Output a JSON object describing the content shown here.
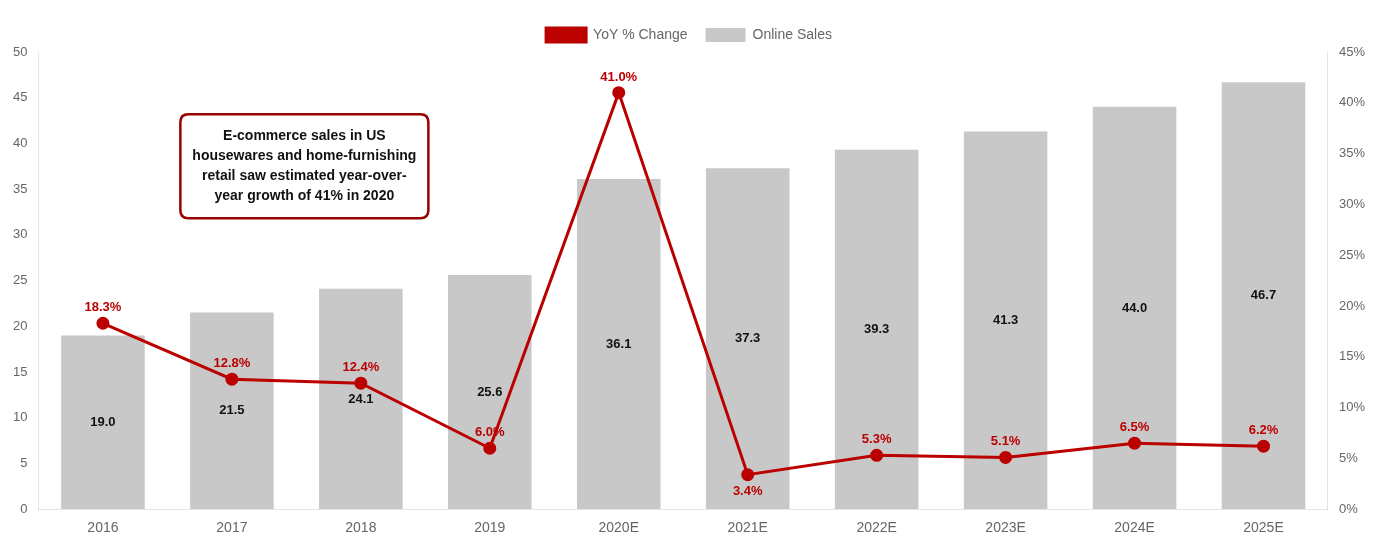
{
  "chart_data": {
    "type": "bar",
    "categories": [
      "2016",
      "2017",
      "2018",
      "2019",
      "2020E",
      "2021E",
      "2022E",
      "2023E",
      "2024E",
      "2025E"
    ],
    "series": [
      {
        "name": "Online Sales",
        "type": "bar",
        "color": "#c8c8c8",
        "values": [
          19.0,
          21.5,
          24.1,
          25.6,
          36.1,
          37.3,
          39.3,
          41.3,
          44.0,
          46.7
        ],
        "value_labels": [
          "19.0",
          "21.5",
          "24.1",
          "25.6",
          "36.1",
          "37.3",
          "39.3",
          "41.3",
          "44.0",
          "46.7"
        ]
      },
      {
        "name": "YoY % Change",
        "type": "line",
        "color": "#bb0000",
        "axis": "y2",
        "marker": "circle",
        "values": [
          18.3,
          12.8,
          12.4,
          6.0,
          41.0,
          3.4,
          5.3,
          5.1,
          6.5,
          6.2
        ],
        "value_labels": [
          "18.3%",
          "12.8%",
          "12.4%",
          "6.0%",
          "41.0%",
          "3.4%",
          "5.3%",
          "5.1%",
          "6.5%",
          "6.2%"
        ]
      }
    ],
    "ylim": [
      0,
      50
    ],
    "yticks": [
      0,
      5,
      10,
      15,
      20,
      25,
      30,
      35,
      40,
      45,
      50
    ],
    "y2lim": [
      0,
      45
    ],
    "y2ticks": [
      {
        "value": 0,
        "label": "0%"
      },
      {
        "value": 5,
        "label": "5%"
      },
      {
        "value": 10,
        "label": "10%"
      },
      {
        "value": 15,
        "label": "15%"
      },
      {
        "value": 20,
        "label": "20%"
      },
      {
        "value": 25,
        "label": "25%"
      },
      {
        "value": 30,
        "label": "30%"
      },
      {
        "value": 35,
        "label": "35%"
      },
      {
        "value": 40,
        "label": "40%"
      },
      {
        "value": 45,
        "label": "45%"
      }
    ],
    "annotation": "E-commerce sales in US\nhousewares and home-furnishing\nretail saw estimated year-over-\nyear growth of 41% in 2020",
    "data_labels": true,
    "legend": "top",
    "grid": false
  }
}
